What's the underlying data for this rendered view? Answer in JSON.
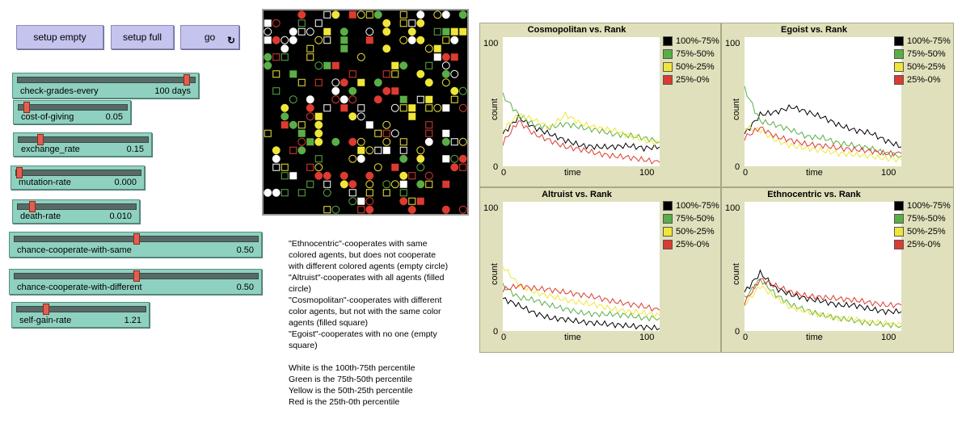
{
  "buttons": {
    "setup_empty": "setup empty",
    "setup_full": "setup full",
    "go": "go",
    "go_icon": "forever-icon"
  },
  "sliders": {
    "check_grades_every": {
      "label": "check-grades-every",
      "value": "100 days",
      "level": 0.97
    },
    "cost_of_giving": {
      "label": "cost-of-giving",
      "value": "0.05",
      "level": 0.05
    },
    "exchange_rate": {
      "label": "exchange_rate",
      "value": "0.15",
      "level": 0.15
    },
    "mutation_rate": {
      "label": "mutation-rate",
      "value": "0.000",
      "level": 0.0
    },
    "death_rate": {
      "label": "death-rate",
      "value": "0.010",
      "level": 0.1
    },
    "chance_cooperate_with_same": {
      "label": "chance-cooperate-with-same",
      "value": "0.50",
      "level": 0.5
    },
    "chance_cooperate_with_different": {
      "label": "chance-cooperate-with-different",
      "value": "0.50",
      "level": 0.5
    },
    "self_gain_rate": {
      "label": "self-gain-rate",
      "value": "1.21",
      "level": 0.21
    }
  },
  "colors": {
    "black": "#000000",
    "green": "#5aae47",
    "yellow": "#f0e63a",
    "red": "#dd3b31",
    "white": "#ffffff",
    "button_bg": "#c4c4ee",
    "slider_bg": "#8fd1c0",
    "plot_bg": "#e0e0bc"
  },
  "notes": [
    "\"Ethnocentric\"-cooperates with same colored agents, but does not cooperate with different colored agents (empty circle)",
    "\"Altruist\"-cooperates with all agents (filled circle)",
    "\"Cosmopolitan\"-cooperates with different color agents, but not with the same color agents (filled square)",
    "\"Egoist\"-cooperates with no one (empty square)",
    "",
    "White is the 100th-75th percentile",
    "Green is the 75th-50th percentile",
    "Yellow is the 50th-25th percentile",
    "Red is the 25th-0th percentile"
  ],
  "plots": [
    {
      "title": "Cosmopolitan vs. Rank",
      "xlabel": "time",
      "ylabel": "count",
      "ymin": "0",
      "ymax": "100",
      "xmin": "0",
      "xmax": "100"
    },
    {
      "title": "Egoist vs. Rank",
      "xlabel": "time",
      "ylabel": "count",
      "ymin": "0",
      "ymax": "100",
      "xmin": "0",
      "xmax": "100"
    },
    {
      "title": "Altruist vs. Rank",
      "xlabel": "time",
      "ylabel": "count",
      "ymin": "0",
      "ymax": "100",
      "xmin": "0",
      "xmax": "100"
    },
    {
      "title": "Ethnocentric vs. Rank",
      "xlabel": "time",
      "ylabel": "count",
      "ymin": "0",
      "ymax": "100",
      "xmin": "0",
      "xmax": "100"
    }
  ],
  "legend": [
    "100%-75%",
    "75%-50%",
    "50%-25%",
    "25%-0%"
  ],
  "chart_data": [
    {
      "type": "line",
      "title": "Cosmopolitan vs. Rank",
      "xlabel": "time",
      "ylabel": "count",
      "xlim": [
        0,
        100
      ],
      "ylim": [
        0,
        100
      ],
      "series": [
        {
          "name": "100%-75%",
          "x": [
            0,
            10,
            20,
            30,
            40,
            50,
            60,
            70,
            80,
            90,
            100
          ],
          "values": [
            25,
            38,
            30,
            25,
            20,
            16,
            15,
            15,
            16,
            14,
            15
          ]
        },
        {
          "name": "75%-50%",
          "x": [
            0,
            10,
            20,
            30,
            40,
            50,
            60,
            70,
            80,
            90,
            100
          ],
          "values": [
            55,
            40,
            32,
            30,
            33,
            30,
            28,
            25,
            24,
            22,
            19
          ]
        },
        {
          "name": "50%-25%",
          "x": [
            0,
            10,
            20,
            30,
            40,
            50,
            60,
            70,
            80,
            90,
            100
          ],
          "values": [
            28,
            40,
            36,
            30,
            40,
            33,
            30,
            28,
            24,
            20,
            18
          ]
        },
        {
          "name": "25%-0%",
          "x": [
            0,
            10,
            20,
            30,
            40,
            50,
            60,
            70,
            80,
            90,
            100
          ],
          "values": [
            18,
            35,
            25,
            20,
            15,
            13,
            10,
            8,
            7,
            5,
            3
          ]
        }
      ]
    },
    {
      "type": "line",
      "title": "Egoist vs. Rank",
      "xlabel": "time",
      "ylabel": "count",
      "xlim": [
        0,
        100
      ],
      "ylim": [
        0,
        100
      ],
      "series": [
        {
          "name": "100%-75%",
          "x": [
            0,
            10,
            20,
            30,
            40,
            50,
            60,
            70,
            80,
            90,
            100
          ],
          "values": [
            25,
            40,
            42,
            46,
            42,
            38,
            32,
            28,
            26,
            20,
            15
          ]
        },
        {
          "name": "75%-50%",
          "x": [
            0,
            10,
            20,
            30,
            40,
            50,
            60,
            70,
            80,
            90,
            100
          ],
          "values": [
            60,
            35,
            32,
            28,
            23,
            22,
            18,
            16,
            14,
            10,
            8
          ]
        },
        {
          "name": "50%-25%",
          "x": [
            0,
            10,
            20,
            30,
            40,
            50,
            60,
            70,
            80,
            90,
            100
          ],
          "values": [
            30,
            28,
            20,
            16,
            14,
            12,
            10,
            9,
            8,
            6,
            5
          ]
        },
        {
          "name": "25%-0%",
          "x": [
            0,
            10,
            20,
            30,
            40,
            50,
            60,
            70,
            80,
            90,
            100
          ],
          "values": [
            22,
            30,
            23,
            20,
            17,
            16,
            14,
            13,
            12,
            10,
            10
          ]
        }
      ]
    },
    {
      "type": "line",
      "title": "Altruist vs. Rank",
      "xlabel": "time",
      "ylabel": "count",
      "xlim": [
        0,
        100
      ],
      "ylim": [
        0,
        100
      ],
      "series": [
        {
          "name": "100%-75%",
          "x": [
            0,
            10,
            20,
            30,
            40,
            50,
            60,
            70,
            80,
            90,
            100
          ],
          "values": [
            25,
            20,
            14,
            10,
            9,
            7,
            6,
            5,
            4,
            3,
            2
          ]
        },
        {
          "name": "75%-50%",
          "x": [
            0,
            10,
            20,
            30,
            40,
            50,
            60,
            70,
            80,
            90,
            100
          ],
          "values": [
            35,
            26,
            24,
            20,
            17,
            14,
            13,
            13,
            12,
            10,
            10
          ]
        },
        {
          "name": "50%-25%",
          "x": [
            0,
            10,
            20,
            30,
            40,
            50,
            60,
            70,
            80,
            90,
            100
          ],
          "values": [
            50,
            36,
            30,
            27,
            24,
            22,
            20,
            17,
            15,
            14,
            12
          ]
        },
        {
          "name": "25%-0%",
          "x": [
            0,
            10,
            20,
            30,
            40,
            50,
            60,
            70,
            80,
            90,
            100
          ],
          "values": [
            32,
            35,
            33,
            32,
            30,
            28,
            26,
            23,
            21,
            19,
            16
          ]
        }
      ]
    },
    {
      "type": "line",
      "title": "Ethnocentric vs. Rank",
      "xlabel": "time",
      "ylabel": "count",
      "xlim": [
        0,
        100
      ],
      "ylim": [
        0,
        100
      ],
      "series": [
        {
          "name": "100%-75%",
          "x": [
            0,
            10,
            20,
            30,
            40,
            50,
            60,
            70,
            80,
            90,
            100
          ],
          "values": [
            30,
            45,
            33,
            28,
            25,
            23,
            20,
            20,
            17,
            15,
            15
          ]
        },
        {
          "name": "75%-50%",
          "x": [
            0,
            10,
            20,
            30,
            40,
            50,
            60,
            70,
            80,
            90,
            100
          ],
          "values": [
            25,
            40,
            28,
            20,
            16,
            12,
            10,
            8,
            6,
            5,
            4
          ]
        },
        {
          "name": "50%-25%",
          "x": [
            0,
            10,
            20,
            30,
            40,
            50,
            60,
            70,
            80,
            90,
            100
          ],
          "values": [
            20,
            35,
            26,
            18,
            15,
            12,
            10,
            9,
            7,
            6,
            5
          ]
        },
        {
          "name": "25%-0%",
          "x": [
            0,
            10,
            20,
            30,
            40,
            50,
            60,
            70,
            80,
            90,
            100
          ],
          "values": [
            22,
            40,
            35,
            30,
            27,
            26,
            25,
            24,
            22,
            20,
            20
          ]
        }
      ]
    }
  ],
  "world": {
    "description_shapes": [
      "empty-circle",
      "filled-circle",
      "filled-square",
      "empty-square"
    ],
    "agent_colors": [
      "white",
      "green",
      "yellow",
      "red"
    ],
    "agent_count": 260
  }
}
